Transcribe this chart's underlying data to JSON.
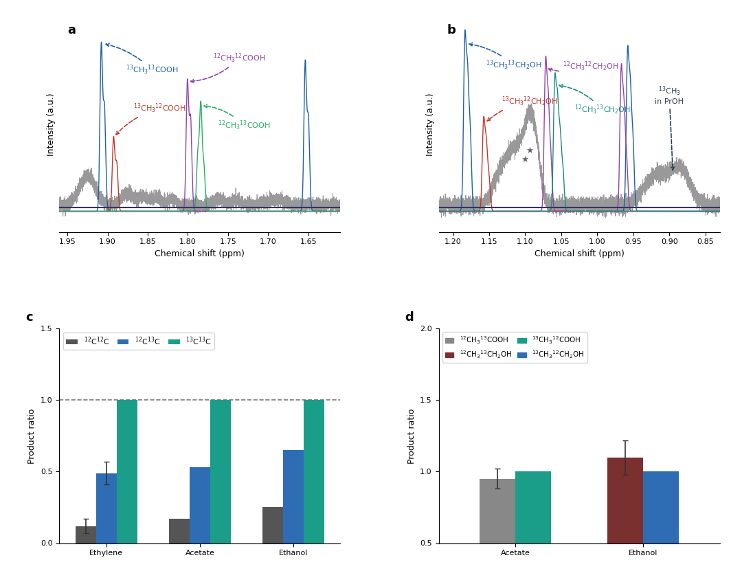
{
  "panel_a": {
    "title": "a",
    "xlabel": "Chemical shift (ppm)",
    "ylabel": "Intensity (a.u.)",
    "xlim": [
      1.96,
      1.61
    ]
  },
  "panel_b": {
    "title": "b",
    "xlabel": "Chemical shift (ppm)",
    "ylabel": "Intensity (a.u.)",
    "xlim": [
      1.22,
      0.83
    ]
  },
  "panel_c": {
    "title": "c",
    "ylabel": "Product ratio",
    "ylim": [
      0,
      1.5
    ],
    "yticks": [
      0,
      0.5,
      1.0,
      1.5
    ],
    "categories": [
      "Ethylene",
      "Acetate",
      "Ethanol"
    ],
    "series": [
      {
        "label": "$^{12}$C$^{12}$C",
        "color": "#555555",
        "values": [
          0.12,
          0.17,
          0.25
        ],
        "errors": [
          0.05,
          0.0,
          0.0
        ]
      },
      {
        "label": "$^{12}$C$^{13}$C",
        "color": "#2e6db4",
        "values": [
          0.49,
          0.53,
          0.65
        ],
        "errors": [
          0.08,
          0.0,
          0.0
        ]
      },
      {
        "label": "$^{13}$C$^{13}$C",
        "color": "#1a9e8a",
        "values": [
          1.0,
          1.0,
          1.0
        ],
        "errors": [
          0.0,
          0.0,
          0.0
        ]
      }
    ],
    "dashed_line": 1.0
  },
  "panel_d": {
    "title": "d",
    "ylabel": "Product ratio",
    "ylim": [
      0.5,
      2.0
    ],
    "yticks": [
      0.5,
      1.0,
      1.5,
      2.0
    ],
    "categories": [
      "Acetate",
      "Ethanol"
    ],
    "series": [
      {
        "label": "$^{12}$CH$_3$$^{13}$COOH",
        "color": "#888888",
        "values": [
          0.95,
          0.0
        ],
        "errors": [
          0.07,
          0.0
        ]
      },
      {
        "label": "$^{13}$CH$_3$$^{12}$COOH",
        "color": "#1a9e8a",
        "values": [
          1.0,
          0.0
        ],
        "errors": [
          0.0,
          0.0
        ]
      },
      {
        "label": "$^{12}$CH$_3$$^{13}$CH$_2$OH",
        "color": "#7b3030",
        "values": [
          0.0,
          1.1
        ],
        "errors": [
          0.0,
          0.12
        ]
      },
      {
        "label": "$^{13}$CH$_3$$^{12}$CH$_2$OH",
        "color": "#2e6db4",
        "values": [
          0.0,
          1.0
        ],
        "errors": [
          0.0,
          0.0
        ]
      }
    ]
  }
}
